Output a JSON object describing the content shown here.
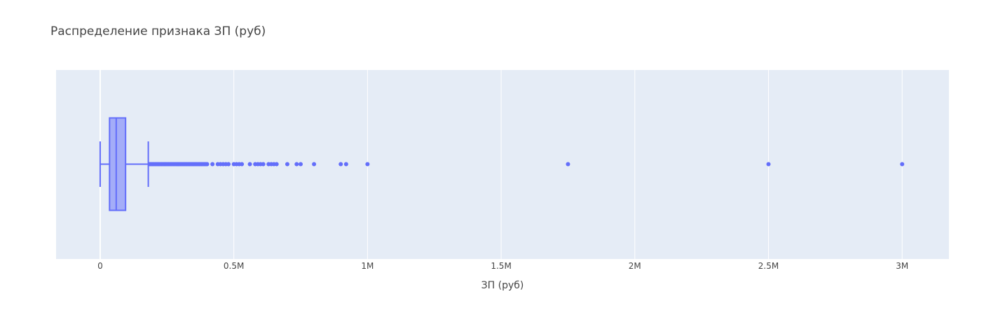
{
  "chart_data": {
    "type": "box",
    "orientation": "horizontal",
    "title": "Распределение признака ЗП (руб)",
    "xlabel": "ЗП (руб)",
    "ylabel": "",
    "xlim": [
      -165000,
      3175000
    ],
    "xticks": [
      {
        "value": 0,
        "label": "0"
      },
      {
        "value": 500000,
        "label": "0.5M"
      },
      {
        "value": 1000000,
        "label": "1M"
      },
      {
        "value": 1500000,
        "label": "1.5M"
      },
      {
        "value": 2000000,
        "label": "2M"
      },
      {
        "value": 2500000,
        "label": "2.5M"
      },
      {
        "value": 3000000,
        "label": "3M"
      }
    ],
    "grid": true,
    "box": {
      "lowerfence": 0,
      "q1": 35000,
      "median": 60000,
      "q3": 95000,
      "upperfence": 180000
    },
    "outliers": [
      185000,
      190000,
      195000,
      200000,
      205000,
      210000,
      215000,
      220000,
      225000,
      230000,
      235000,
      240000,
      245000,
      250000,
      255000,
      260000,
      265000,
      270000,
      275000,
      280000,
      285000,
      290000,
      295000,
      300000,
      305000,
      310000,
      315000,
      320000,
      325000,
      330000,
      335000,
      340000,
      345000,
      350000,
      355000,
      360000,
      365000,
      370000,
      375000,
      380000,
      385000,
      390000,
      395000,
      400000,
      420000,
      440000,
      450000,
      460000,
      470000,
      480000,
      500000,
      510000,
      520000,
      530000,
      560000,
      580000,
      590000,
      600000,
      610000,
      630000,
      640000,
      650000,
      660000,
      700000,
      735000,
      750000,
      800000,
      900000,
      920000,
      1000000,
      1750000,
      2500000,
      3000000
    ],
    "colors": {
      "marker": "#636efa",
      "box_fill": "rgba(99,110,250,0.5)",
      "plot_bg": "#e5ecf6",
      "grid": "#ffffff"
    }
  }
}
